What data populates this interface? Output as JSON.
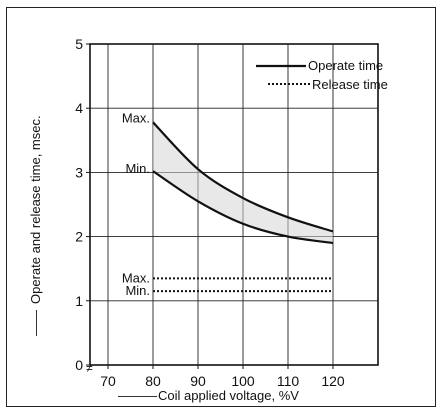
{
  "chart_data": {
    "type": "line",
    "xlabel": "Coil applied voltage, %V",
    "ylabel": "Operate and release time, msec.",
    "x_axis_arrow": "———",
    "y_axis_arrow": "——",
    "x_ticks": [
      70,
      80,
      90,
      100,
      110,
      120
    ],
    "y_ticks": [
      0,
      1,
      2,
      3,
      4,
      5
    ],
    "xlim": [
      66,
      130
    ],
    "ylim": [
      0,
      5
    ],
    "axis_break": "≠",
    "grid": true,
    "legend": {
      "position": "top-right",
      "entries": [
        {
          "name": "Operate time",
          "style": "solid"
        },
        {
          "name": "Release time",
          "style": "dotted"
        }
      ]
    },
    "series": [
      {
        "name": "Operate time Max.",
        "style": "solid",
        "x": [
          80,
          90,
          100,
          110,
          120
        ],
        "y": [
          3.78,
          3.05,
          2.6,
          2.3,
          2.08
        ]
      },
      {
        "name": "Operate time Min.",
        "style": "solid",
        "x": [
          80,
          90,
          100,
          110,
          120
        ],
        "y": [
          3.02,
          2.55,
          2.2,
          2.0,
          1.9
        ]
      },
      {
        "name": "Release time Max.",
        "style": "dotted",
        "x": [
          80,
          120
        ],
        "y": [
          1.35,
          1.35
        ]
      },
      {
        "name": "Release time Min.",
        "style": "dotted",
        "x": [
          80,
          120
        ],
        "y": [
          1.15,
          1.15
        ]
      }
    ],
    "annotations": [
      {
        "text": "Max.",
        "series": 0
      },
      {
        "text": "Min.",
        "series": 1
      },
      {
        "text": "Max.",
        "series": 2
      },
      {
        "text": "Min.",
        "series": 3
      }
    ]
  }
}
